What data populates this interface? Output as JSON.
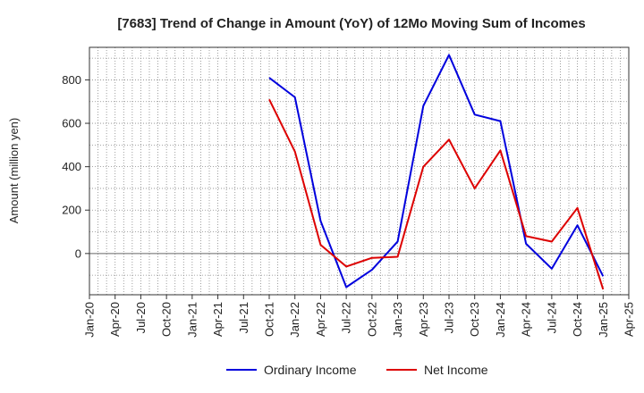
{
  "chart_data": {
    "type": "line",
    "title": "[7683]  Trend of Change in Amount (YoY) of 12Mo Moving Sum of Incomes",
    "ylabel": "Amount (million yen)",
    "xlabel": "",
    "ylim": [
      -190,
      950
    ],
    "yticks": [
      0,
      200,
      400,
      600,
      800
    ],
    "x_tick_labels": [
      "Jan-20",
      "Apr-20",
      "Jul-20",
      "Oct-20",
      "Jan-21",
      "Apr-21",
      "Jul-21",
      "Oct-21",
      "Jan-22",
      "Apr-22",
      "Jul-22",
      "Oct-22",
      "Jan-23",
      "Apr-23",
      "Jul-23",
      "Oct-23",
      "Jan-24",
      "Apr-24",
      "Jul-24",
      "Oct-24",
      "Jan-25",
      "Apr-25"
    ],
    "grid": true,
    "legend_position": "bottom-center",
    "series": [
      {
        "name": "Ordinary Income",
        "color": "#0000dd",
        "x": [
          "Oct-21",
          "Jan-22",
          "Apr-22",
          "Jul-22",
          "Oct-22",
          "Jan-23",
          "Apr-23",
          "Jul-23",
          "Oct-23",
          "Jan-24",
          "Apr-24",
          "Jul-24",
          "Oct-24",
          "Jan-25"
        ],
        "values": [
          810,
          720,
          150,
          -155,
          -75,
          55,
          680,
          915,
          640,
          610,
          45,
          -70,
          130,
          -105
        ]
      },
      {
        "name": "Net Income",
        "color": "#dd0000",
        "x": [
          "Oct-21",
          "Jan-22",
          "Apr-22",
          "Jul-22",
          "Oct-22",
          "Jan-23",
          "Apr-23",
          "Jul-23",
          "Oct-23",
          "Jan-24",
          "Apr-24",
          "Jul-24",
          "Oct-24",
          "Jan-25"
        ],
        "values": [
          710,
          470,
          40,
          -60,
          -20,
          -15,
          400,
          525,
          300,
          475,
          80,
          55,
          210,
          -165
        ]
      }
    ]
  }
}
